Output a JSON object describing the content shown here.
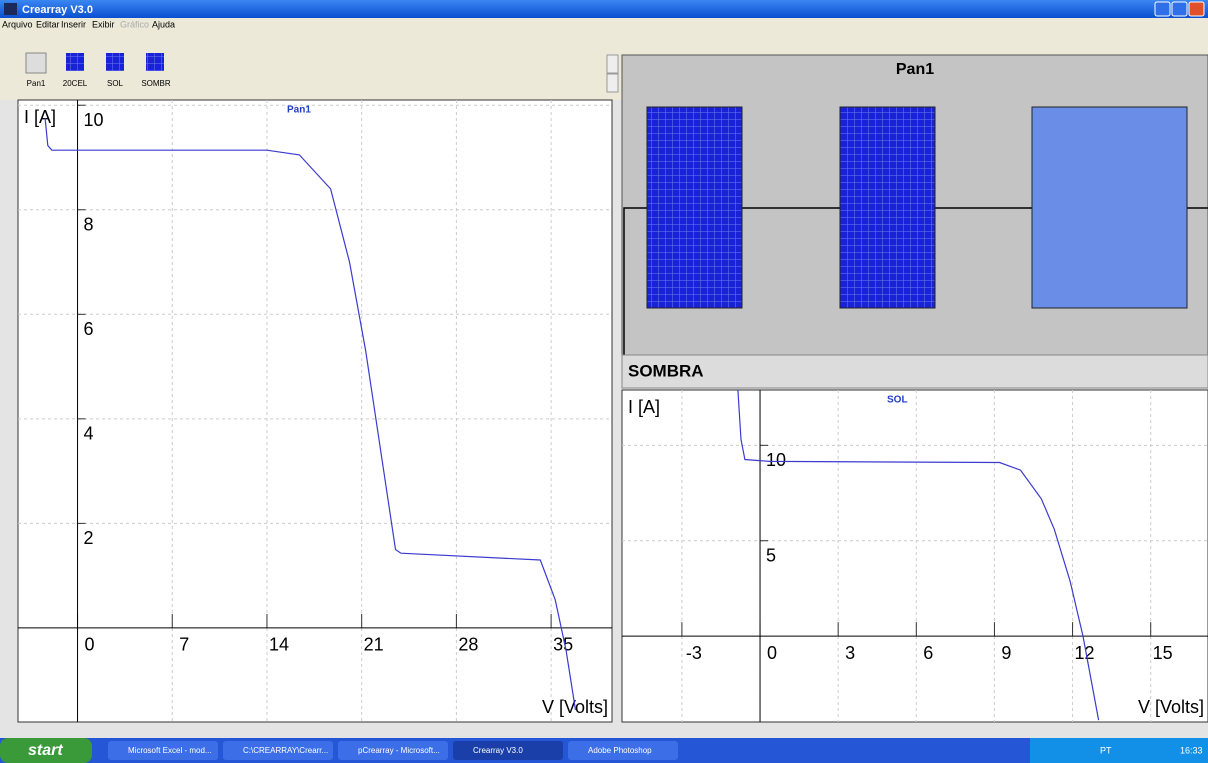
{
  "window": {
    "title": "Crearray V3.0"
  },
  "menu": [
    "Arquivo",
    "Editar",
    "Inserir",
    "Exibir",
    "Gráfico",
    "Ajuda"
  ],
  "toolbar": [
    "Pan1",
    "20CEL",
    "SOL",
    "SOMBR"
  ],
  "panel": {
    "title": "Pan1",
    "footer": "SOMBRA"
  },
  "chart_data": [
    {
      "type": "line",
      "title": "Pan1",
      "x_label": "V [Volts]",
      "y_label": "I [A]",
      "xlim": [
        -4.4,
        39.5
      ],
      "ylim": [
        -1.8,
        10.1
      ],
      "xticks": [
        0,
        7,
        14,
        21,
        28,
        35
      ],
      "yticks": [
        2,
        4,
        6,
        8,
        10
      ],
      "grid": true,
      "series": [
        {
          "color": "#3b3bd0",
          "x": [
            -2.4,
            -2.2,
            -1.9,
            14,
            16.4,
            18.7,
            20.1,
            21.3,
            22.4,
            23.5,
            23.9,
            34.2,
            35.3,
            36.1,
            36.8
          ],
          "values": [
            9.75,
            9.23,
            9.14,
            9.14,
            9.05,
            8.4,
            7.0,
            5.3,
            3.4,
            1.5,
            1.43,
            1.3,
            0.54,
            -0.42,
            -1.57
          ]
        }
      ]
    },
    {
      "type": "line",
      "title": "SOL",
      "x_label": "V [Volts]",
      "y_label": "I [A]",
      "xlim": [
        -5.3,
        17.2
      ],
      "ylim": [
        -4.5,
        12.9
      ],
      "xticks": [
        -3,
        0,
        3,
        6,
        9,
        12,
        15
      ],
      "yticks": [
        5,
        10
      ],
      "grid": true,
      "series": [
        {
          "color": "#3b3bd0",
          "x": [
            -0.85,
            -0.73,
            -0.58,
            0.38,
            9.2,
            10.0,
            10.8,
            11.3,
            11.9,
            12.4,
            13.0
          ],
          "values": [
            12.9,
            10.3,
            9.26,
            9.16,
            9.1,
            8.7,
            7.2,
            5.6,
            2.9,
            0,
            -4.4
          ]
        }
      ]
    }
  ],
  "taskbar": {
    "start": "start",
    "items": [
      "Microsoft Excel - mod...",
      "C:\\CREARRAY\\Crearr...",
      "pCrearray - Microsoft...",
      "Crearray V3.0",
      "Adobe Photoshop"
    ],
    "tray": [
      "PT",
      "16:33"
    ]
  }
}
